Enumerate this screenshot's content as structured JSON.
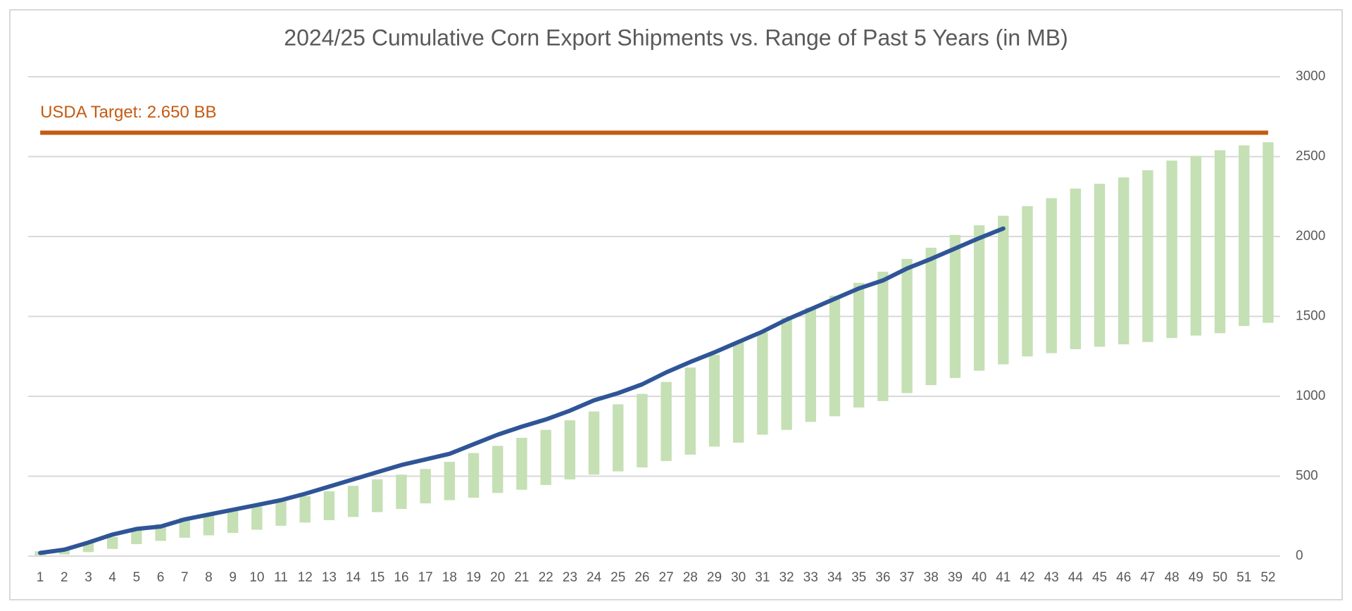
{
  "chart_data": {
    "type": "range_bar_line",
    "title": "2024/25 Cumulative Corn Export Shipments vs. Range of Past 5 Years (in MB)",
    "categories": [
      "1",
      "2",
      "3",
      "4",
      "5",
      "6",
      "7",
      "8",
      "9",
      "10",
      "11",
      "12",
      "13",
      "14",
      "15",
      "16",
      "17",
      "18",
      "19",
      "20",
      "21",
      "22",
      "23",
      "24",
      "25",
      "26",
      "27",
      "28",
      "29",
      "30",
      "31",
      "32",
      "33",
      "34",
      "35",
      "36",
      "37",
      "38",
      "39",
      "40",
      "41",
      "42",
      "43",
      "44",
      "45",
      "46",
      "47",
      "48",
      "49",
      "50",
      "51",
      "52"
    ],
    "range_bars": {
      "color": "#c5e0b4",
      "low": [
        5,
        10,
        25,
        45,
        75,
        95,
        115,
        130,
        145,
        165,
        190,
        210,
        225,
        245,
        275,
        295,
        330,
        350,
        365,
        395,
        415,
        445,
        480,
        510,
        530,
        555,
        595,
        635,
        685,
        710,
        760,
        790,
        840,
        875,
        930,
        970,
        1020,
        1070,
        1115,
        1160,
        1200,
        1250,
        1270,
        1295,
        1310,
        1325,
        1340,
        1365,
        1380,
        1395,
        1440,
        1460
      ],
      "high": [
        30,
        50,
        90,
        120,
        160,
        200,
        240,
        260,
        290,
        310,
        345,
        375,
        405,
        440,
        480,
        510,
        545,
        590,
        645,
        690,
        740,
        790,
        850,
        905,
        950,
        1015,
        1090,
        1180,
        1260,
        1340,
        1400,
        1490,
        1555,
        1630,
        1710,
        1780,
        1860,
        1930,
        2010,
        2070,
        2130,
        2190,
        2240,
        2300,
        2330,
        2370,
        2415,
        2475,
        2505,
        2540,
        2570,
        2590
      ]
    },
    "line": {
      "color": "#2f5597",
      "values": [
        20,
        40,
        85,
        135,
        170,
        185,
        230,
        260,
        290,
        320,
        350,
        390,
        435,
        480,
        525,
        570,
        605,
        640,
        700,
        760,
        810,
        855,
        910,
        975,
        1020,
        1075,
        1150,
        1215,
        1275,
        1340,
        1405,
        1480,
        1545,
        1610,
        1675,
        1725,
        1800,
        1860,
        1925,
        1990,
        2050,
        null,
        null,
        null,
        null,
        null,
        null,
        null,
        null,
        null,
        null,
        null
      ]
    },
    "target": {
      "value": 2650,
      "label": "USDA Target: 2.650 BB",
      "color": "#c55a11"
    },
    "ylim": [
      0,
      3000
    ],
    "yticks": [
      0,
      500,
      1000,
      1500,
      2000,
      2500,
      3000
    ],
    "grid": true,
    "y_axis_side": "right"
  }
}
